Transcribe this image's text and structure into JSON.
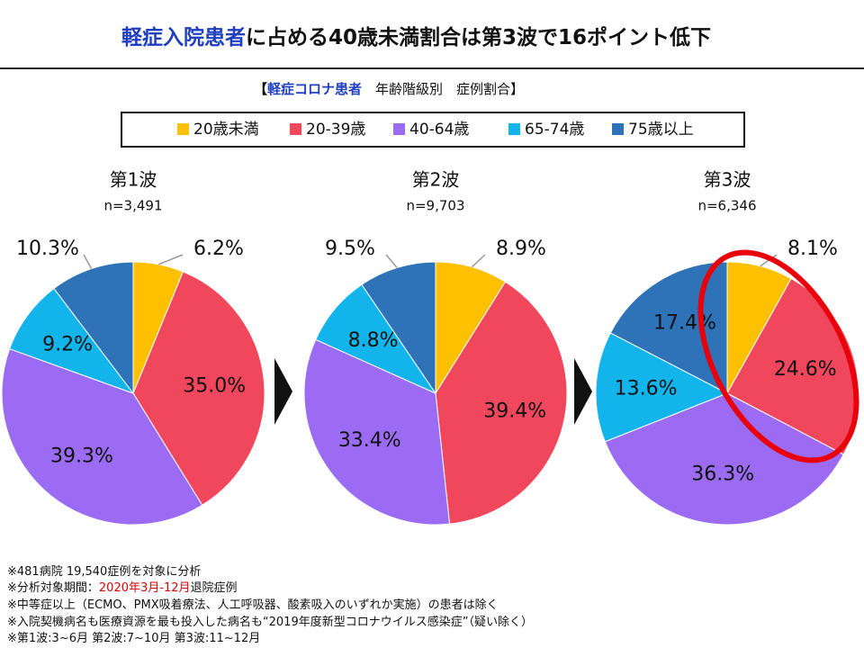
{
  "header": {
    "title": [
      "軽症入院患者",
      "に占める40歳未満割合は第3波で16ポイント低下"
    ],
    "subtitle": [
      "【",
      "軽症コロナ患者",
      "　年齢階級別　症例割合】"
    ]
  },
  "chart_data": [
    {
      "type": "pie",
      "title": "第1波",
      "subtitle": "n=3,491",
      "categories": [
        "20歳未満",
        "20-39歳",
        "40-64歳",
        "65-74歳",
        "75歳以上"
      ],
      "colors": [
        "#ffc000",
        "#f0475c",
        "#9c6bf3",
        "#12b4ec",
        "#2e72b8"
      ],
      "values": [
        6.2,
        35.0,
        39.3,
        9.2,
        10.3
      ],
      "value_labels": [
        "6.2%",
        "35.0%",
        "39.3%",
        "9.2%",
        "10.3%"
      ]
    },
    {
      "type": "pie",
      "title": "第2波",
      "subtitle": "n=9,703",
      "categories": [
        "20歳未満",
        "20-39歳",
        "40-64歳",
        "65-74歳",
        "75歳以上"
      ],
      "colors": [
        "#ffc000",
        "#f0475c",
        "#9c6bf3",
        "#12b4ec",
        "#2e72b8"
      ],
      "values": [
        8.9,
        39.4,
        33.4,
        8.8,
        9.5
      ],
      "value_labels": [
        "8.9%",
        "39.4%",
        "33.4%",
        "8.8%",
        "9.5%"
      ]
    },
    {
      "type": "pie",
      "title": "第3波",
      "subtitle": "n=6,346",
      "categories": [
        "20歳未満",
        "20-39歳",
        "40-64歳",
        "65-74歳",
        "75歳以上"
      ],
      "colors": [
        "#ffc000",
        "#f0475c",
        "#9c6bf3",
        "#12b4ec",
        "#2e72b8"
      ],
      "values": [
        8.1,
        24.6,
        36.3,
        13.6,
        17.4
      ],
      "value_labels": [
        "8.1%",
        "24.6%",
        "36.3%",
        "13.6%",
        "17.4%"
      ]
    }
  ],
  "notes": [
    [
      "※481病院 19,540症例を対象に分析"
    ],
    [
      "※分析対象期間：",
      "2020年3月-12月",
      "退院症例"
    ],
    [
      "※中等症以上（ECMO、PMX吸着療法、人工呼吸器、酸素吸入のいずれか実施）の患者は除く"
    ],
    [
      "※入院契機病名も医療資源を最も投入した病名も“2019年度新型コロナウイルス感染症”（疑い除く）"
    ],
    [
      "※第1波:3~6月 第2波:7~10月 第3波:11~12月"
    ]
  ]
}
